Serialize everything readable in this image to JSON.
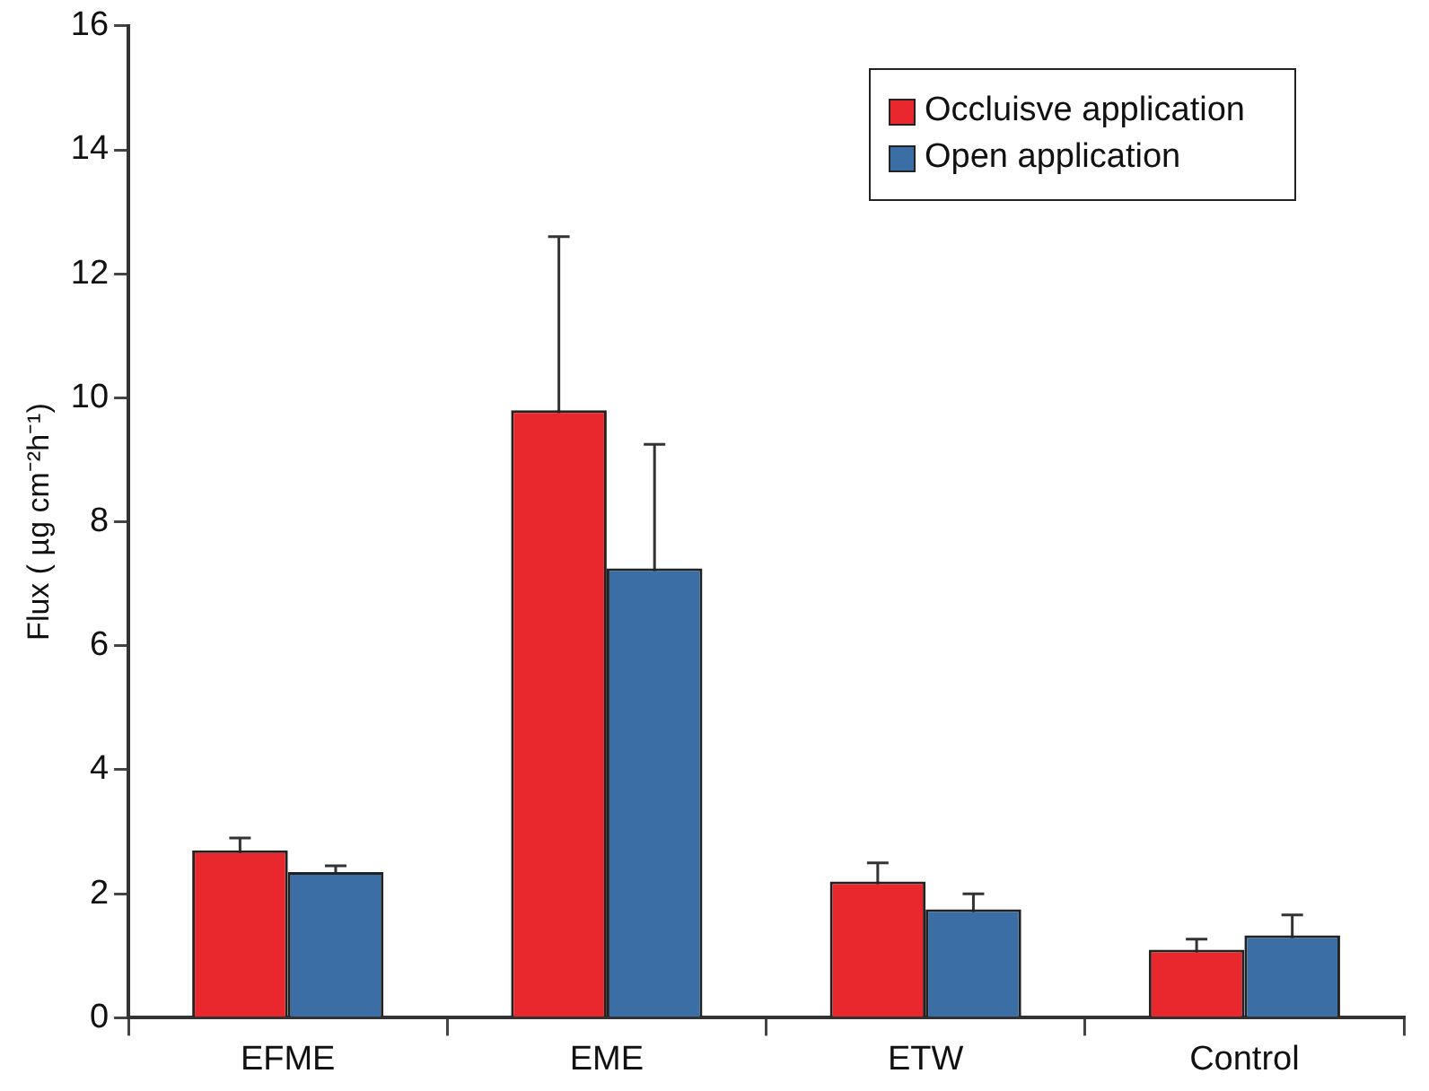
{
  "chart_data": {
    "type": "bar",
    "ylabel": "Flux ( µg cm⁻²h⁻¹)",
    "categories": [
      "EFME",
      "EME",
      "ETW",
      "Control"
    ],
    "series": [
      {
        "name": "Occluisve application",
        "color": "#e8282d",
        "values": [
          2.7,
          9.8,
          2.2,
          1.1
        ],
        "errors": [
          0.2,
          2.8,
          0.3,
          0.17
        ]
      },
      {
        "name": "Open application",
        "color": "#3a6ea5",
        "values": [
          2.35,
          7.25,
          1.75,
          1.33
        ],
        "errors": [
          0.1,
          2.0,
          0.25,
          0.33
        ]
      }
    ],
    "ylim": [
      0,
      16
    ],
    "yticks": [
      0,
      2,
      4,
      6,
      8,
      10,
      12,
      14,
      16
    ],
    "grid": false,
    "legend": "top right"
  }
}
